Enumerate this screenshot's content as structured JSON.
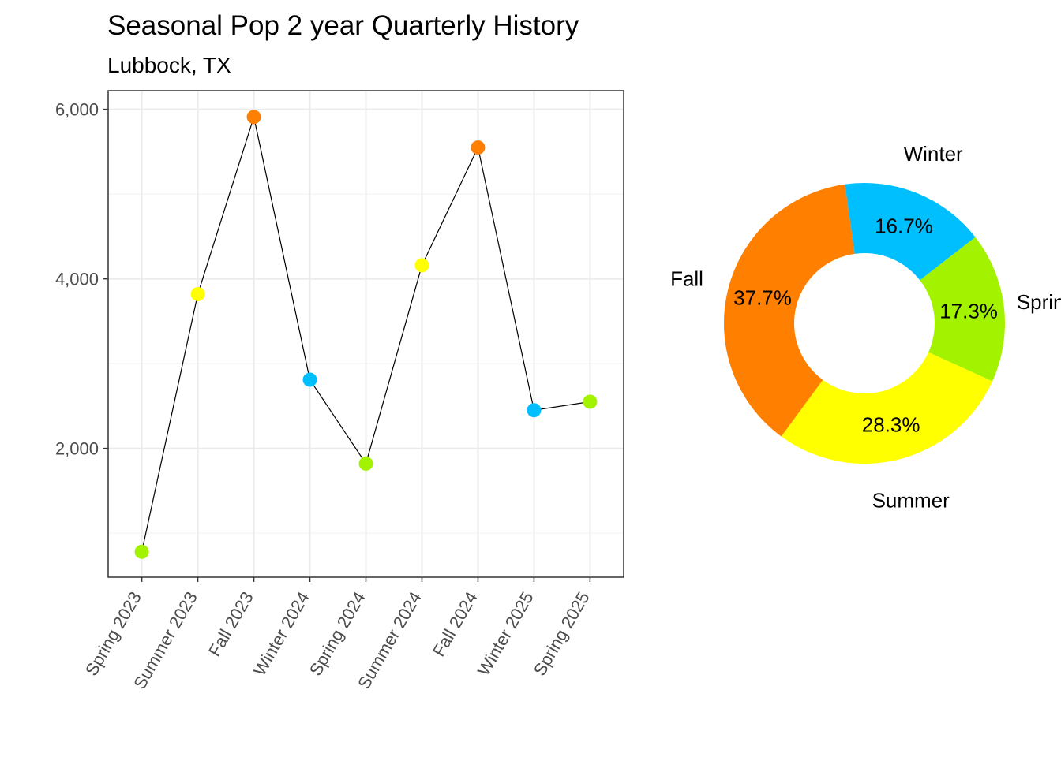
{
  "chart_data": [
    {
      "type": "line",
      "title": "Seasonal Pop 2 year Quarterly History",
      "subtitle": "Lubbock, TX",
      "xlabel": "",
      "ylabel": "",
      "categories": [
        "Spring 2023",
        "Summer 2023",
        "Fall 2023",
        "Winter 2024",
        "Spring 2024",
        "Summer 2024",
        "Fall 2024",
        "Winter 2025",
        "Spring 2025"
      ],
      "seasons": [
        "Spring",
        "Summer",
        "Fall",
        "Winter",
        "Spring",
        "Summer",
        "Fall",
        "Winter",
        "Spring"
      ],
      "values": [
        780,
        3820,
        5910,
        2810,
        1820,
        4160,
        5550,
        2450,
        2550
      ],
      "ylim": [
        480,
        6220
      ],
      "yticks": [
        2000,
        4000,
        6000
      ],
      "ytick_labels": [
        "2,000",
        "4,000",
        "6,000"
      ],
      "grid": true,
      "line_color": "#000000",
      "season_colors": {
        "Spring": "#a3f200",
        "Summer": "#ffff00",
        "Fall": "#ff7f00",
        "Winter": "#00bfff"
      }
    },
    {
      "type": "pie",
      "donut": true,
      "slices": [
        {
          "label": "Winter",
          "value": 16.7,
          "pct_label": "16.7%",
          "color": "#00bfff"
        },
        {
          "label": "Spring",
          "value": 17.3,
          "pct_label": "17.3%",
          "color": "#a3f200"
        },
        {
          "label": "Summer",
          "value": 28.3,
          "pct_label": "28.3%",
          "color": "#ffff00"
        },
        {
          "label": "Fall",
          "value": 37.7,
          "pct_label": "37.7%",
          "color": "#ff7f00"
        }
      ]
    }
  ]
}
